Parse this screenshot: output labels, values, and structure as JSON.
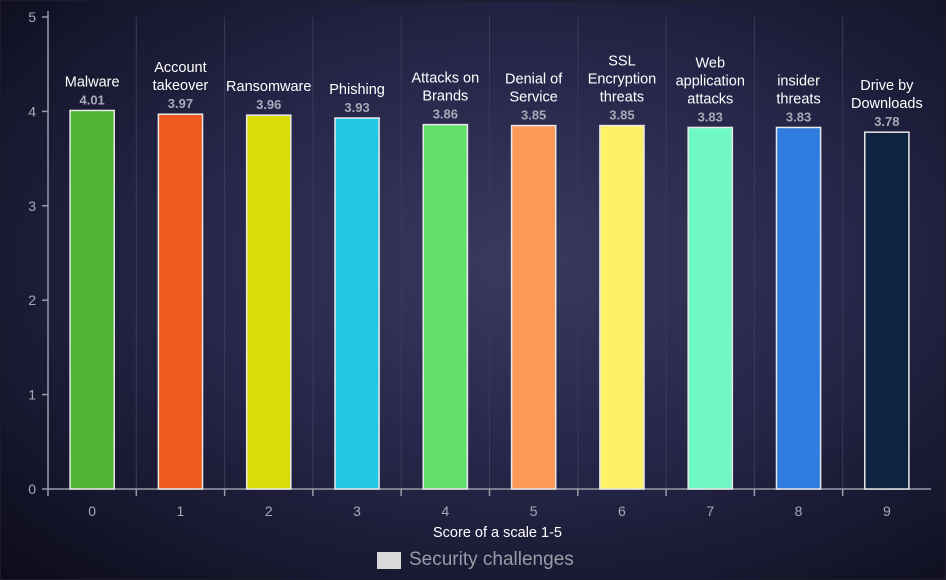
{
  "chart_data": {
    "type": "bar",
    "categories": [
      "0",
      "1",
      "2",
      "3",
      "4",
      "5",
      "6",
      "7",
      "8",
      "9"
    ],
    "bar_labels": [
      [
        "Malware"
      ],
      [
        "Account",
        "takeover"
      ],
      [
        "Ransomware"
      ],
      [
        "Phishing"
      ],
      [
        "Attacks on",
        "Brands"
      ],
      [
        "Denial of",
        "Service"
      ],
      [
        "SSL",
        "Encryption",
        "threats"
      ],
      [
        "Web",
        "application",
        "attacks"
      ],
      [
        "insider",
        "threats"
      ],
      [
        "Drive by",
        "Downloads"
      ]
    ],
    "values": [
      4.01,
      3.97,
      3.96,
      3.93,
      3.86,
      3.85,
      3.85,
      3.83,
      3.83,
      3.78
    ],
    "value_labels": [
      "4.01",
      "3.97",
      "3.96",
      "3.93",
      "3.86",
      "3.85",
      "3.85",
      "3.83",
      "3.83",
      "3.78"
    ],
    "colors": [
      "#4fb435",
      "#ef5a1c",
      "#dcdc0a",
      "#23c8e6",
      "#64e06e",
      "#fe9957",
      "#fff06a",
      "#6ff7c5",
      "#2f7de0",
      "#0f2340"
    ],
    "xlabel": "Score of a scale 1-5",
    "ylabel": "",
    "ylim": [
      0,
      5
    ],
    "yticks": [
      "0",
      "1",
      "2",
      "3",
      "4",
      "5"
    ],
    "legend": {
      "label": "Security challenges",
      "placement": "bottom-center",
      "color": "#d9d9d9"
    },
    "grid": true
  }
}
